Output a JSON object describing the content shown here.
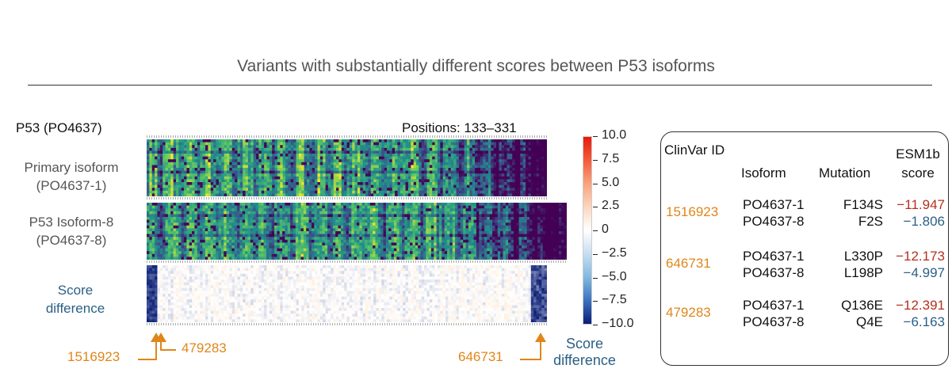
{
  "title": "Variants with substantially different scores between P53 isoforms",
  "protein_label": "P53 (PO4637)",
  "positions_label": "Positions: 133–331",
  "row_labels": {
    "primary": [
      "Primary isoform",
      "(PO4637-1)"
    ],
    "isoform8": [
      "P53 Isoform-8",
      "(PO4637-8)"
    ],
    "score_diff": [
      "Score",
      "difference"
    ]
  },
  "annotations": {
    "left_1": "1516923",
    "left_2": "479283",
    "right_1": "646731",
    "score_diff_caption": [
      "Score",
      "difference"
    ]
  },
  "chart_data": {
    "type": "heatmap",
    "title": "Variants with substantially different scores between P53 isoforms",
    "panels": [
      {
        "name": "Primary isoform (PO4637-1)",
        "positions": "133–331",
        "colormap": "viridis"
      },
      {
        "name": "P53 Isoform-8 (PO4637-8)",
        "colormap": "viridis"
      },
      {
        "name": "Score difference",
        "colormap": "diverging"
      }
    ],
    "colorbar": {
      "min": -10.0,
      "max": 10.0,
      "tick_labels": [
        "10.0",
        "7.5",
        "5.0",
        "2.5",
        "0",
        "−2.5",
        "−5.0",
        "−7.5",
        "−10.0"
      ],
      "ticks": [
        10.0,
        7.5,
        5.0,
        2.5,
        0,
        -2.5,
        -5.0,
        -7.5,
        -10.0
      ]
    },
    "highlighted_variants": [
      "1516923",
      "479283",
      "646731"
    ]
  },
  "table": {
    "headers": {
      "clinvar": "ClinVar ID",
      "isoform": "Isoform",
      "mutation": "Mutation",
      "esm1b_1": "ESM1b",
      "esm1b_2": "score"
    },
    "rows": [
      {
        "clinvar_id": "1516923",
        "entries": [
          {
            "isoform": "PO4637-1",
            "mutation": "F134S",
            "score": "−11.947",
            "tone": "red"
          },
          {
            "isoform": "PO4637-8",
            "mutation": "F2S",
            "score": "−1.806",
            "tone": "blue"
          }
        ]
      },
      {
        "clinvar_id": "646731",
        "entries": [
          {
            "isoform": "PO4637-1",
            "mutation": "L330P",
            "score": "−12.173",
            "tone": "red"
          },
          {
            "isoform": "PO4637-8",
            "mutation": "L198P",
            "score": "−4.997",
            "tone": "blue"
          }
        ]
      },
      {
        "clinvar_id": "479283",
        "entries": [
          {
            "isoform": "PO4637-1",
            "mutation": "Q136E",
            "score": "−12.391",
            "tone": "red"
          },
          {
            "isoform": "PO4637-8",
            "mutation": "Q4E",
            "score": "−6.163",
            "tone": "blue"
          }
        ]
      }
    ]
  }
}
